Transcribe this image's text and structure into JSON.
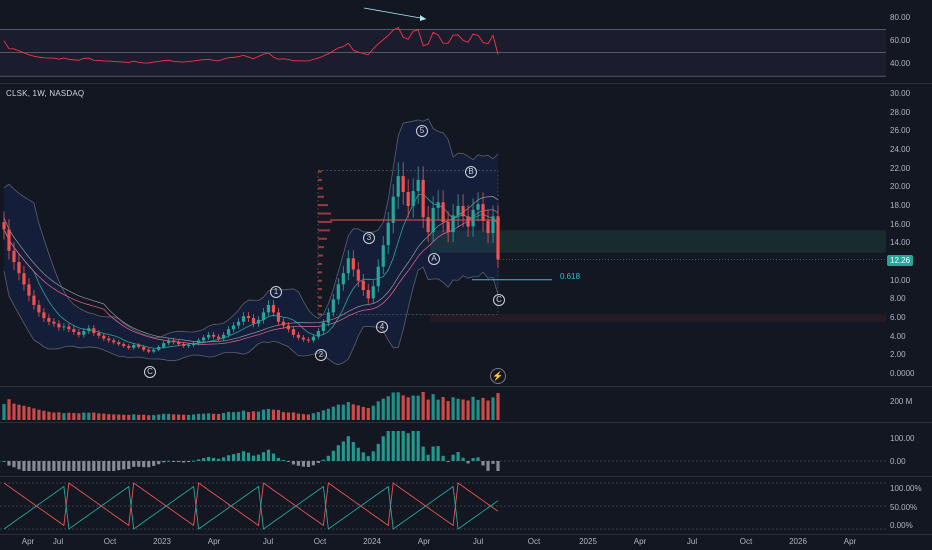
{
  "symbol": {
    "ticker": "CLSK",
    "interval": "1W",
    "exchange": "NASDAQ",
    "label": "CLSK, 1W, NASDAQ"
  },
  "rsi_pane": {
    "ticks": [
      "80.00",
      "60.00",
      "40.00"
    ],
    "bands": [
      70,
      50,
      30
    ]
  },
  "price_pane": {
    "ticks": [
      "30.00",
      "28.00",
      "26.00",
      "24.00",
      "22.00",
      "20.00",
      "18.00",
      "16.00",
      "14.00",
      "12.00",
      "10.00",
      "8.00",
      "6.00",
      "4.00",
      "2.00",
      "0.0000"
    ],
    "last_price": "12.26",
    "fib_label": "0.618"
  },
  "waves": {
    "c1": "C",
    "w1": "1",
    "w2": "2",
    "w3": "3",
    "w4": "4",
    "w5": "5",
    "a": "A",
    "b": "B",
    "c2": "C"
  },
  "volume_pane": {
    "ticks": [
      "200 M"
    ]
  },
  "macd_pane": {
    "ticks": [
      "100.00",
      "0.00"
    ]
  },
  "stoch_pane": {
    "ticks": [
      "100.00%",
      "50.00%",
      "0.00%"
    ]
  },
  "time_axis": {
    "labels": [
      "Apr",
      "Jul",
      "Oct",
      "2023",
      "Apr",
      "Jul",
      "Oct",
      "2024",
      "Apr",
      "Jul",
      "Oct",
      "2025",
      "Apr",
      "Jul",
      "Oct",
      "2026",
      "Apr"
    ]
  },
  "colors": {
    "up": "#26a69a",
    "down": "#ef5350",
    "rsi": "#f23645",
    "background": "#131722",
    "grid": "#2a2e39"
  },
  "icons": {
    "indicator_icon": "lightning-icon"
  },
  "chart_data": {
    "type": "candlestick",
    "ylim": [
      0,
      30
    ],
    "weekly_close": [
      15.5,
      13.2,
      12.0,
      10.8,
      9.6,
      8.4,
      7.4,
      6.6,
      6.0,
      5.6,
      5.4,
      5.0,
      5.1,
      4.8,
      4.5,
      4.2,
      4.6,
      4.9,
      4.4,
      4.1,
      3.8,
      3.6,
      3.4,
      3.2,
      3.0,
      2.8,
      3.1,
      2.9,
      2.6,
      2.4,
      2.6,
      2.9,
      3.3,
      3.6,
      3.4,
      3.2,
      3.0,
      3.1,
      3.3,
      3.6,
      3.9,
      4.2,
      4.0,
      3.8,
      4.2,
      4.8,
      5.2,
      5.6,
      6.2,
      6.0,
      5.4,
      5.8,
      6.6,
      7.4,
      6.6,
      5.6,
      5.2,
      4.8,
      4.2,
      3.9,
      3.7,
      3.6,
      4.0,
      4.6,
      5.5,
      6.6,
      8.0,
      9.6,
      10.8,
      12.4,
      11.2,
      10.0,
      9.0,
      8.1,
      9.4,
      11.5,
      13.8,
      16.2,
      19.0,
      21.2,
      19.5,
      18.0,
      19.6,
      20.8,
      16.8,
      15.2,
      17.8,
      18.4,
      16.3,
      15.2,
      17.0,
      18.0,
      16.9,
      15.8,
      17.6,
      18.2,
      16.4,
      15.1,
      16.9,
      12.26
    ]
  }
}
